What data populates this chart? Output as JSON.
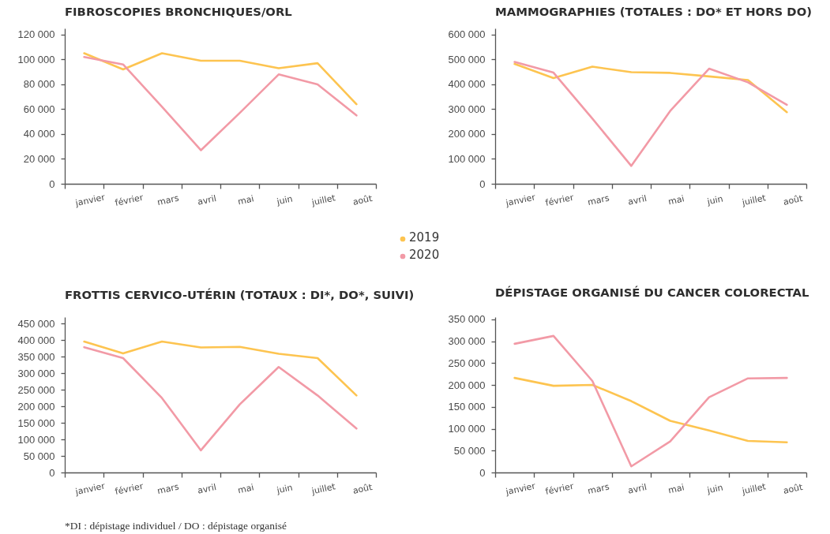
{
  "chart_data": [
    {
      "type": "line",
      "title": "FIBROSCOPIES BRONCHIQUES/ORL",
      "categories": [
        "janvier",
        "février",
        "mars",
        "avril",
        "mai",
        "juin",
        "juillet",
        "août"
      ],
      "series": [
        {
          "name": "2019",
          "color": "#fdc450",
          "values": [
            105000,
            92000,
            105000,
            99000,
            99000,
            93000,
            97000,
            64000
          ]
        },
        {
          "name": "2020",
          "color": "#f29aa6",
          "values": [
            102000,
            96000,
            62000,
            27000,
            57000,
            88000,
            80000,
            55000
          ]
        }
      ],
      "ylim": [
        0,
        125000
      ],
      "yticks": [
        0,
        {
          "value": 20000,
          "label": "20 000"
        },
        {
          "value": 40000,
          "label": "40 000"
        },
        {
          "value": 60000,
          "label": "60 000"
        },
        {
          "value": 80000,
          "label": "80 000"
        },
        {
          "value": 100000,
          "label": "100 000"
        },
        {
          "value": 120000,
          "label": "120 000"
        }
      ],
      "legend": "bottom"
    },
    {
      "type": "line",
      "title": "MAMMOGRAPHIES (TOTALES : DO* ET HORS DO)",
      "categories": [
        "janvier",
        "février",
        "mars",
        "avril",
        "mai",
        "juin",
        "juillet",
        "août"
      ],
      "series": [
        {
          "name": "2019",
          "color": "#fdc450",
          "values": [
            482000,
            425000,
            471000,
            449000,
            446000,
            432000,
            417000,
            288000
          ]
        },
        {
          "name": "2020",
          "color": "#f29aa6",
          "values": [
            490000,
            447000,
            262000,
            72000,
            293000,
            463000,
            408000,
            318000
          ]
        }
      ],
      "ylim": [
        0,
        625000
      ],
      "yticks": [
        0,
        {
          "value": 100000,
          "label": "100 000"
        },
        {
          "value": 200000,
          "label": "200 000"
        },
        {
          "value": 300000,
          "label": "300 000"
        },
        {
          "value": 400000,
          "label": "400 000"
        },
        {
          "value": 500000,
          "label": "500 000"
        },
        {
          "value": 600000,
          "label": "600 000"
        }
      ]
    },
    {
      "type": "line",
      "title": "FROTTIS CERVICO-UTÉRIN (TOTAUX : DI*, DO*, SUIVI)",
      "categories": [
        "janvier",
        "février",
        "mars",
        "avril",
        "mai",
        "juin",
        "juillet",
        "août"
      ],
      "series": [
        {
          "name": "2019",
          "color": "#fdc450",
          "values": [
            396000,
            360000,
            396000,
            378000,
            380000,
            359000,
            346000,
            233000
          ]
        },
        {
          "name": "2020",
          "color": "#f29aa6",
          "values": [
            379000,
            346000,
            225000,
            67000,
            206000,
            319000,
            233000,
            133000
          ]
        }
      ],
      "ylim": [
        0,
        470000
      ],
      "yticks": [
        0,
        {
          "value": 50000,
          "label": "50 000"
        },
        {
          "value": 100000,
          "label": "100 000"
        },
        {
          "value": 150000,
          "label": "150 000"
        },
        {
          "value": 200000,
          "label": "200 000"
        },
        {
          "value": 250000,
          "label": "250 000"
        },
        {
          "value": 300000,
          "label": "300 000"
        },
        {
          "value": 350000,
          "label": "350 000"
        },
        {
          "value": 400000,
          "label": "400 000"
        },
        {
          "value": 450000,
          "label": "450 000"
        }
      ],
      "annotations": [
        "*DI : dépistage individuel / DO : dépistage organisé"
      ]
    },
    {
      "type": "line",
      "title": "DÉPISTAGE ORGANISÉ DU CANCER COLORECTAL",
      "categories": [
        "janvier",
        "février",
        "mars",
        "avril",
        "mai",
        "juin",
        "juillet",
        "août"
      ],
      "series": [
        {
          "name": "2019",
          "color": "#fdc450",
          "values": [
            216000,
            198000,
            200000,
            163000,
            118000,
            96000,
            72000,
            69000
          ]
        },
        {
          "name": "2020",
          "color": "#f29aa6",
          "values": [
            294000,
            312000,
            209000,
            14000,
            71000,
            172000,
            215000,
            216000
          ]
        }
      ],
      "ylim": [
        0,
        355000
      ],
      "yticks": [
        0,
        {
          "value": 50000,
          "label": "50 000"
        },
        {
          "value": 100000,
          "label": "100 000"
        },
        {
          "value": 150000,
          "label": "150 000"
        },
        {
          "value": 200000,
          "label": "200 000"
        },
        {
          "value": 250000,
          "label": "250 000"
        },
        {
          "value": 300000,
          "label": "300 000"
        },
        {
          "value": 350000,
          "label": "350 000"
        }
      ]
    }
  ]
}
